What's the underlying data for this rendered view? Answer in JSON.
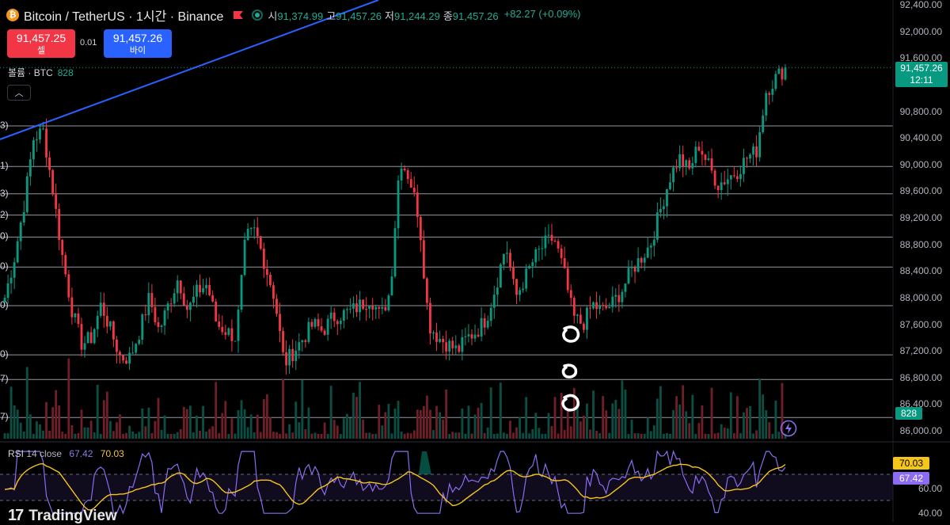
{
  "header": {
    "icon": "bitcoin-icon",
    "symbol_title": "Bitcoin / TetherUS · 1시간 · Binance",
    "ohlc": {
      "open_label": "시",
      "open": "91,374.99",
      "high_label": "고",
      "high": "91,457.26",
      "low_label": "저",
      "low": "91,244.29",
      "close_label": "종",
      "close": "91,457.26",
      "change": "+82.27 (+0.09%)"
    }
  },
  "trade": {
    "sell_price": "91,457.25",
    "sell_label": "셀",
    "spread": "0.01",
    "buy_price": "91,457.26",
    "buy_label": "바이"
  },
  "volume": {
    "label": "볼륨 · BTC",
    "value": "828"
  },
  "price_axis": {
    "ticks": [
      "92,400.00",
      "92,000.00",
      "91,600.00",
      "90,800.00",
      "90,400.00",
      "90,000.00",
      "89,600.00",
      "89,200.00",
      "88,800.00",
      "88,400.00",
      "88,000.00",
      "87,600.00",
      "87,200.00",
      "86,800.00",
      "86,400.00",
      "86,000.00"
    ],
    "tick_values": [
      92400,
      92000,
      91600,
      90800,
      90400,
      90000,
      89600,
      89200,
      88800,
      88400,
      88000,
      87600,
      87200,
      86800,
      86400,
      86000
    ],
    "last_price": "91,457.26",
    "countdown": "12:11",
    "volume_badge": "828"
  },
  "left_edge_labels": [
    "3)",
    "1)",
    "3)",
    "2)",
    "0)",
    "0)",
    "0)",
    "0)",
    "7)",
    "7)"
  ],
  "rsi": {
    "name": "RSI",
    "params": "14 close",
    "value": "67.42",
    "ma_value": "70.03",
    "ticks": [
      "60.00",
      "40.00"
    ]
  },
  "footer": {
    "brand": "TradingView"
  },
  "colors": {
    "up": "#089981",
    "down": "#f23645",
    "trendline": "#2962ff",
    "rsi": "#8c6cf0",
    "rsi_ma": "#f5c518",
    "level": "#b2b5be"
  },
  "chart_data": {
    "type": "candlestick",
    "ylim": [
      86000,
      92400
    ],
    "horizontal_levels": [
      90580,
      89970,
      89560,
      89240,
      88910,
      88460,
      87880,
      87140,
      86770,
      86200
    ],
    "last_price": 91457.26,
    "price_path": [
      88000,
      88600,
      89400,
      90400,
      90500,
      89600,
      88600,
      87800,
      87300,
      87400,
      87900,
      87500,
      87100,
      87100,
      87500,
      88000,
      87500,
      87900,
      88300,
      87800,
      88100,
      88200,
      87600,
      87500,
      87400,
      88900,
      89000,
      88500,
      88000,
      87000,
      87200,
      87400,
      87600,
      87500,
      87700,
      87750,
      87800,
      87900,
      88000,
      87700,
      88100,
      90100,
      89800,
      89200,
      87600,
      87400,
      87300,
      87200,
      87400,
      87500,
      87700,
      88200,
      88800,
      88000,
      88300,
      88600,
      88800,
      88900,
      88400,
      87700,
      87600,
      87900,
      87800,
      87900,
      88100,
      88400,
      88600,
      88800,
      89300,
      89800,
      90100,
      89900,
      90300,
      90000,
      89700,
      89800,
      89900,
      90100,
      90200,
      91100,
      91300,
      91450
    ]
  }
}
